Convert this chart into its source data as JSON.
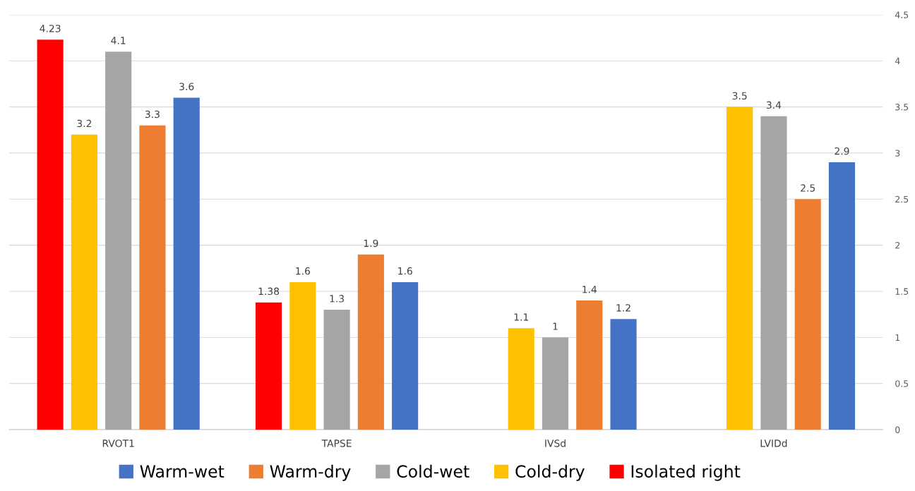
{
  "chart_data": {
    "type": "bar",
    "categories": [
      "RVOT1",
      "TAPSE",
      "IVSd",
      "LVIDd"
    ],
    "series": [
      {
        "name": "Warm-wet",
        "color": "#4472c4",
        "values": [
          3.6,
          1.6,
          1.2,
          2.9
        ]
      },
      {
        "name": "Warm-dry",
        "color": "#ed7d31",
        "values": [
          3.3,
          1.9,
          1.4,
          2.5
        ]
      },
      {
        "name": "Cold-wet",
        "color": "#a5a5a5",
        "values": [
          4.1,
          1.3,
          1,
          3.4
        ]
      },
      {
        "name": "Cold-dry",
        "color": "#ffc000",
        "values": [
          3.2,
          1.6,
          1.1,
          3.5
        ]
      },
      {
        "name": "Isolated right",
        "color": "#ff0000",
        "values": [
          4.23,
          1.38,
          null,
          null
        ]
      }
    ],
    "ylim": [
      0,
      4.5
    ],
    "yticks": [
      0,
      0.5,
      1,
      1.5,
      2,
      2.5,
      3,
      3.5,
      4,
      4.5
    ],
    "grid": "y",
    "legend": "bottom",
    "data_labels": true
  }
}
